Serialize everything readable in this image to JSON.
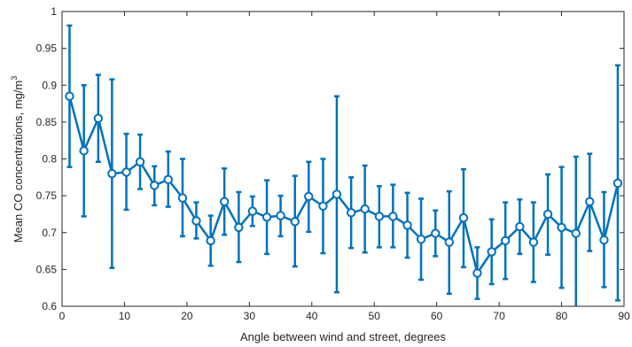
{
  "chart_data": {
    "type": "line",
    "xlabel": "Angle between wind and street, degrees",
    "ylabel": "Mean CO concentrations, mg/m",
    "ylabel_superscript": "3",
    "xlim": [
      0,
      90
    ],
    "ylim": [
      0.6,
      1
    ],
    "xticks": [
      "0",
      "10",
      "20",
      "30",
      "40",
      "50",
      "60",
      "70",
      "80",
      "90"
    ],
    "yticks": [
      "0.6",
      "0.65",
      "0.7",
      "0.75",
      "0.8",
      "0.85",
      "0.9",
      "0.95",
      "1"
    ],
    "grid": false,
    "color": "#0072BD",
    "series": [
      {
        "x": [
          1.2,
          3.5,
          5.8,
          8.0,
          10.3,
          12.5,
          14.8,
          17.0,
          19.3,
          21.5,
          23.8,
          26.0,
          28.3,
          30.5,
          32.8,
          35.0,
          37.3,
          39.5,
          41.8,
          44.0,
          46.3,
          48.5,
          50.8,
          53.0,
          55.3,
          57.5,
          59.8,
          62.0,
          64.3,
          66.5,
          68.8,
          71.0,
          73.3,
          75.5,
          77.8,
          80.0,
          82.3,
          84.5,
          86.8,
          89.0
        ],
        "values": [
          0.885,
          0.811,
          0.855,
          0.78,
          0.782,
          0.796,
          0.764,
          0.772,
          0.747,
          0.716,
          0.689,
          0.742,
          0.707,
          0.729,
          0.721,
          0.723,
          0.715,
          0.749,
          0.736,
          0.752,
          0.727,
          0.732,
          0.722,
          0.722,
          0.71,
          0.691,
          0.699,
          0.687,
          0.72,
          0.645,
          0.674,
          0.689,
          0.708,
          0.687,
          0.725,
          0.707,
          0.699,
          0.742,
          0.69,
          0.767
        ],
        "error_low": [
          0.789,
          0.722,
          0.796,
          0.652,
          0.731,
          0.759,
          0.737,
          0.735,
          0.695,
          0.692,
          0.655,
          0.697,
          0.66,
          0.709,
          0.671,
          0.695,
          0.654,
          0.701,
          0.672,
          0.619,
          0.679,
          0.673,
          0.68,
          0.68,
          0.666,
          0.636,
          0.668,
          0.617,
          0.653,
          0.61,
          0.63,
          0.637,
          0.671,
          0.633,
          0.67,
          0.625,
          0.595,
          0.675,
          0.626,
          0.608
        ],
        "error_high": [
          0.981,
          0.9,
          0.914,
          0.908,
          0.834,
          0.833,
          0.79,
          0.81,
          0.8,
          0.741,
          0.723,
          0.787,
          0.755,
          0.749,
          0.771,
          0.75,
          0.777,
          0.796,
          0.8,
          0.885,
          0.775,
          0.791,
          0.763,
          0.765,
          0.754,
          0.746,
          0.73,
          0.756,
          0.786,
          0.68,
          0.718,
          0.741,
          0.745,
          0.741,
          0.779,
          0.789,
          0.803,
          0.807,
          0.755,
          0.927
        ]
      }
    ]
  }
}
